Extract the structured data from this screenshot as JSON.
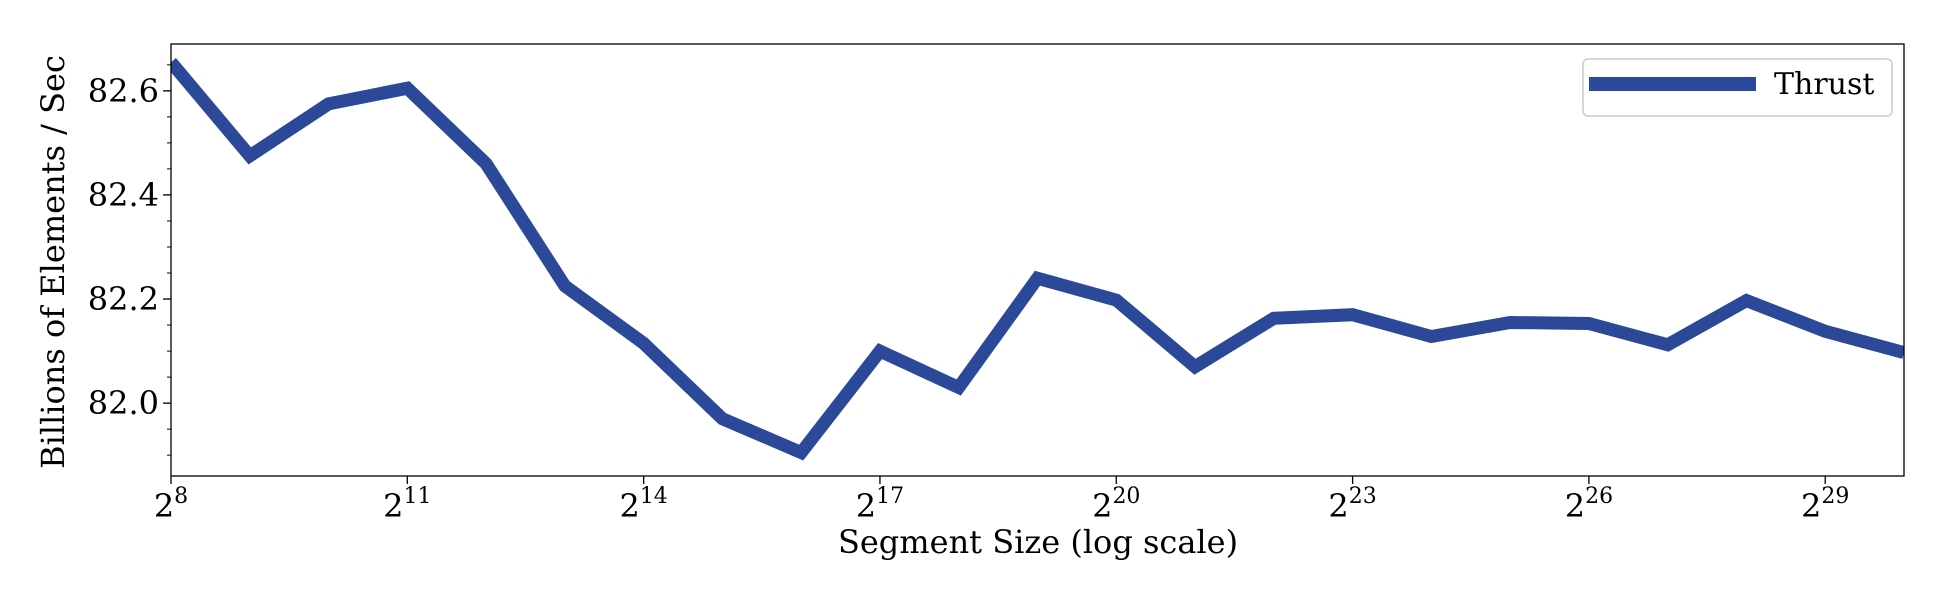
{
  "chart_data": {
    "type": "line",
    "title": "",
    "xlabel": "Segment Size (log scale)",
    "ylabel": "Billions of Elements / Sec",
    "x_scale": "log2",
    "xlim": [
      8,
      30
    ],
    "ylim": [
      81.86,
      82.69
    ],
    "x_ticks": [
      {
        "exp": 8,
        "base": "2",
        "sup": "8"
      },
      {
        "exp": 11,
        "base": "2",
        "sup": "11"
      },
      {
        "exp": 14,
        "base": "2",
        "sup": "14"
      },
      {
        "exp": 17,
        "base": "2",
        "sup": "17"
      },
      {
        "exp": 20,
        "base": "2",
        "sup": "20"
      },
      {
        "exp": 23,
        "base": "2",
        "sup": "23"
      },
      {
        "exp": 26,
        "base": "2",
        "sup": "26"
      },
      {
        "exp": 29,
        "base": "2",
        "sup": "29"
      }
    ],
    "y_ticks": [
      {
        "value": 82.0,
        "label": "82.0"
      },
      {
        "value": 82.2,
        "label": "82.2"
      },
      {
        "value": 82.4,
        "label": "82.4"
      },
      {
        "value": 82.6,
        "label": "82.6"
      }
    ],
    "y_minor_step": 0.05,
    "grid": false,
    "legend": {
      "position": "top-right"
    },
    "series": [
      {
        "name": "Thrust",
        "color": "#2b4899",
        "x": [
          8,
          9,
          10,
          11,
          12,
          13,
          14,
          15,
          16,
          17,
          18,
          19,
          20,
          21,
          22,
          23,
          24,
          25,
          26,
          27,
          28,
          29,
          30
        ],
        "values": [
          82.655,
          82.475,
          82.575,
          82.605,
          82.46,
          82.225,
          82.115,
          81.97,
          81.905,
          82.1,
          82.03,
          82.24,
          82.198,
          82.07,
          82.163,
          82.17,
          82.128,
          82.155,
          82.153,
          82.112,
          82.197,
          82.138,
          82.097
        ]
      }
    ]
  }
}
